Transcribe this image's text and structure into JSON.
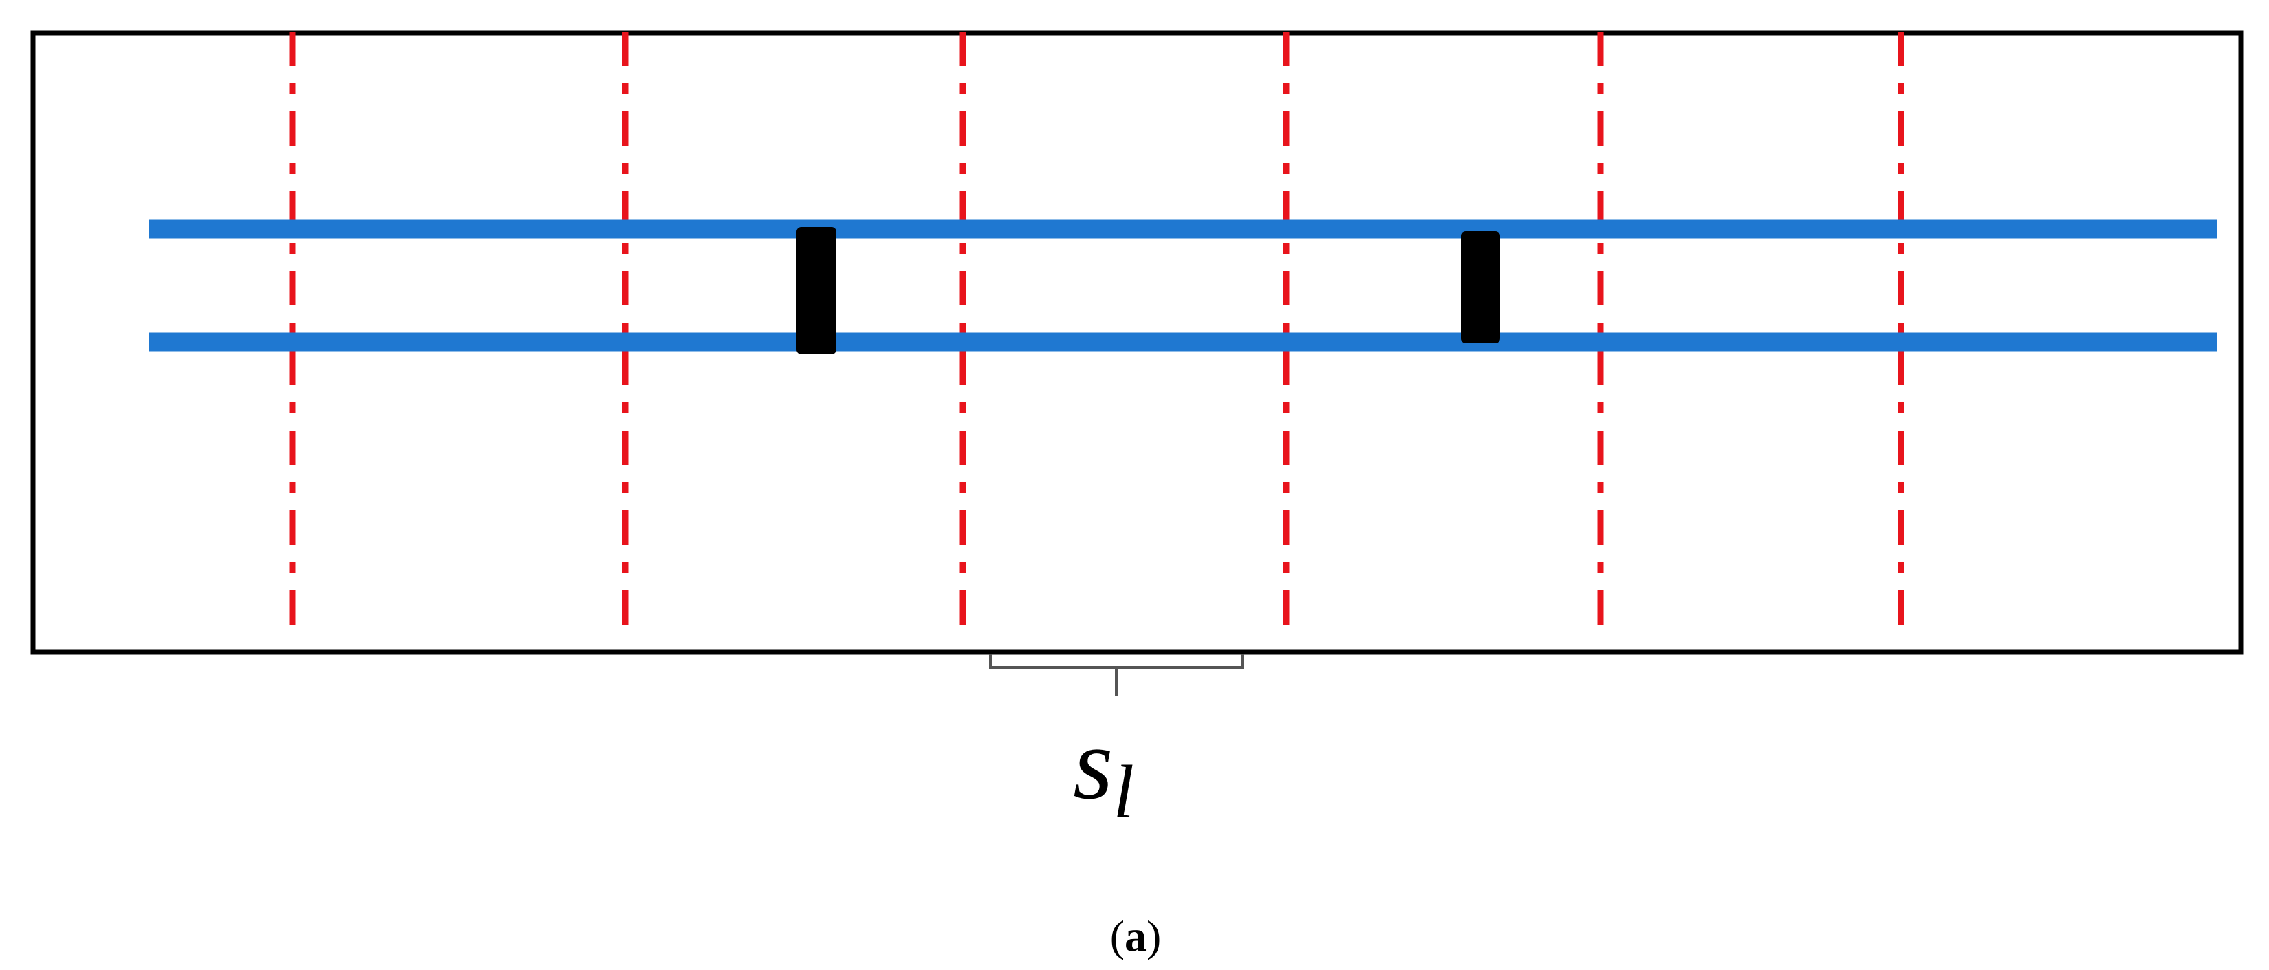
{
  "colors": {
    "frame": "#000000",
    "rails": "#1f78d1",
    "gridlines": "#e8141c",
    "blocks": "#000000",
    "brace": "#555555"
  },
  "spacing_label": {
    "base": "s",
    "subscript": "l"
  },
  "caption": {
    "open": "(",
    "letter": "a",
    "close": ")"
  }
}
